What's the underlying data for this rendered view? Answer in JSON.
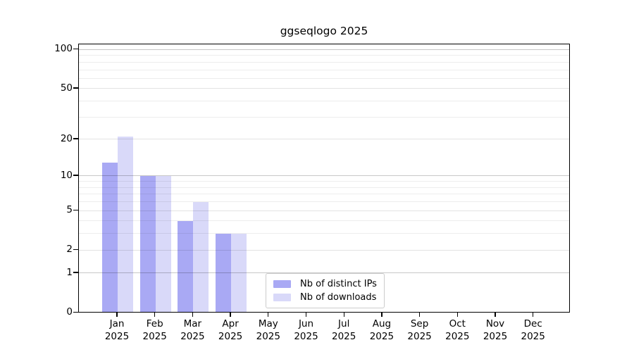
{
  "chart_data": {
    "type": "bar",
    "title": "ggseqlogo 2025",
    "categories": [
      "Jan",
      "Feb",
      "Mar",
      "Apr",
      "May",
      "Jun",
      "Jul",
      "Aug",
      "Sep",
      "Oct",
      "Nov",
      "Dec"
    ],
    "category_year": "2025",
    "series": [
      {
        "name": "Nb of distinct IPs",
        "color": "#a9a9f4",
        "values": [
          13,
          10,
          4,
          3,
          0,
          0,
          0,
          0,
          0,
          0,
          0,
          0
        ]
      },
      {
        "name": "Nb of downloads",
        "color": "#d9d9f9",
        "values": [
          21,
          10,
          6,
          3,
          0,
          0,
          0,
          0,
          0,
          0,
          0,
          0
        ]
      }
    ],
    "y_scale": "log1p",
    "ylim": [
      0,
      111
    ],
    "y_ticks": [
      0,
      1,
      2,
      5,
      10,
      20,
      50,
      100
    ],
    "y_major_gridlines": [
      1,
      10,
      100
    ],
    "y_minor_gridlines": [
      3,
      4,
      6,
      7,
      8,
      9,
      30,
      40,
      60,
      70,
      80,
      90
    ],
    "grid": "horizontal",
    "xlabel": "",
    "ylabel": "",
    "legend_position": "lower center"
  },
  "colors": {
    "background": "#ffffff",
    "axis": "#000000",
    "text": "#000000",
    "grid_major": "rgba(0,0,0,0.22)",
    "grid_tick": "rgba(0,0,0,0.11)",
    "grid_minor": "rgba(0,0,0,0.07)",
    "legend_border": "#cccccc"
  }
}
